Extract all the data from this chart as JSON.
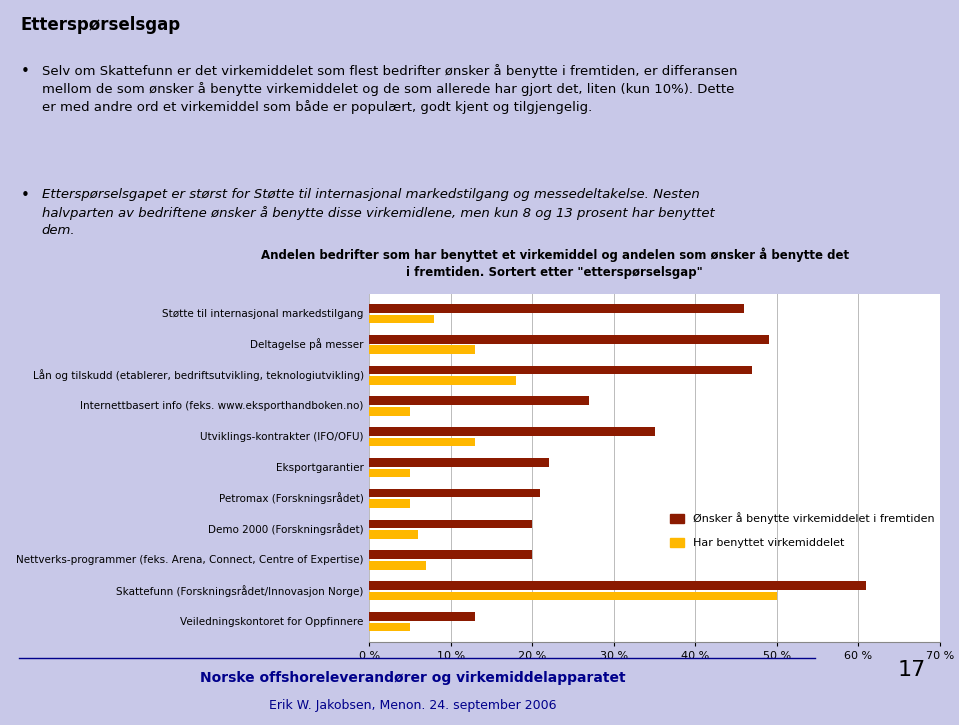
{
  "title_main": "Etterspørselsgap",
  "bullet1_line1": "Selv om Skattefunn er det virkemiddelet som flest bedrifter ønsker å benytte i fremtiden, er differansen",
  "bullet1_line2": "mellom de som ønsker å benytte virkemiddelet og de som allerede har gjort det, liten (kun 10%). Dette",
  "bullet1_line3": "er med andre ord et virkemiddel som både er populært, godt kjent og tilgjengelig.",
  "bullet2_line1": "Etterspørselsgapet er størst for Støtte til internasjonal markedstilgang og messedeltakelse. Nesten",
  "bullet2_line2": "halvparten av bedriftene ønsker å benytte disse virkemidlene, men kun 8 og 13 prosent har benyttet",
  "bullet2_line3": "dem.",
  "chart_title": "Andelen bedrifter som har benyttet et virkemiddel og andelen som ønsker å benytte det\ni fremtiden. Sortert etter \"etterspørselsgap\"",
  "categories": [
    "Støtte til internasjonal markedstilgang",
    "Deltagelse på messer",
    "Lån og tilskudd (etablerer, bedriftsutvikling, teknologiutvikling)",
    "Internettbasert info (feks. www.eksporthandboken.no)",
    "Utviklings-kontrakter (IFO/OFU)",
    "Eksportgarantier",
    "Petromax (Forskningsrådet)",
    "Demo 2000 (Forskningsrådet)",
    "Nettverks-programmer (feks. Arena, Connect, Centre of Expertise)",
    "Skattefunn (Forskningsrådet/Innovasjon Norge)",
    "Veiledningskontoret for Oppfinnere"
  ],
  "wants_values": [
    46,
    49,
    47,
    27,
    35,
    22,
    21,
    20,
    20,
    61,
    13
  ],
  "used_values": [
    8,
    13,
    18,
    5,
    13,
    5,
    5,
    6,
    7,
    50,
    5
  ],
  "bar_color_wants": "#8B1A00",
  "bar_color_used": "#FFB800",
  "bg_color": "#C8C8E8",
  "chart_bg_color": "#FFFFFF",
  "legend_wants": "Ønsker å benytte virkemiddelet i fremtiden",
  "legend_used": "Har benyttet virkemiddelet",
  "xlim": [
    0,
    70
  ],
  "xtick_values": [
    0,
    10,
    20,
    30,
    40,
    50,
    60,
    70
  ],
  "footer_bold": "Norske offshoreleverandører og virkemiddelapparatet",
  "footer_normal": "Erik W. Jakobsen, Menon. 24. september 2006",
  "footer_color": "#00008B",
  "page_number": "17"
}
